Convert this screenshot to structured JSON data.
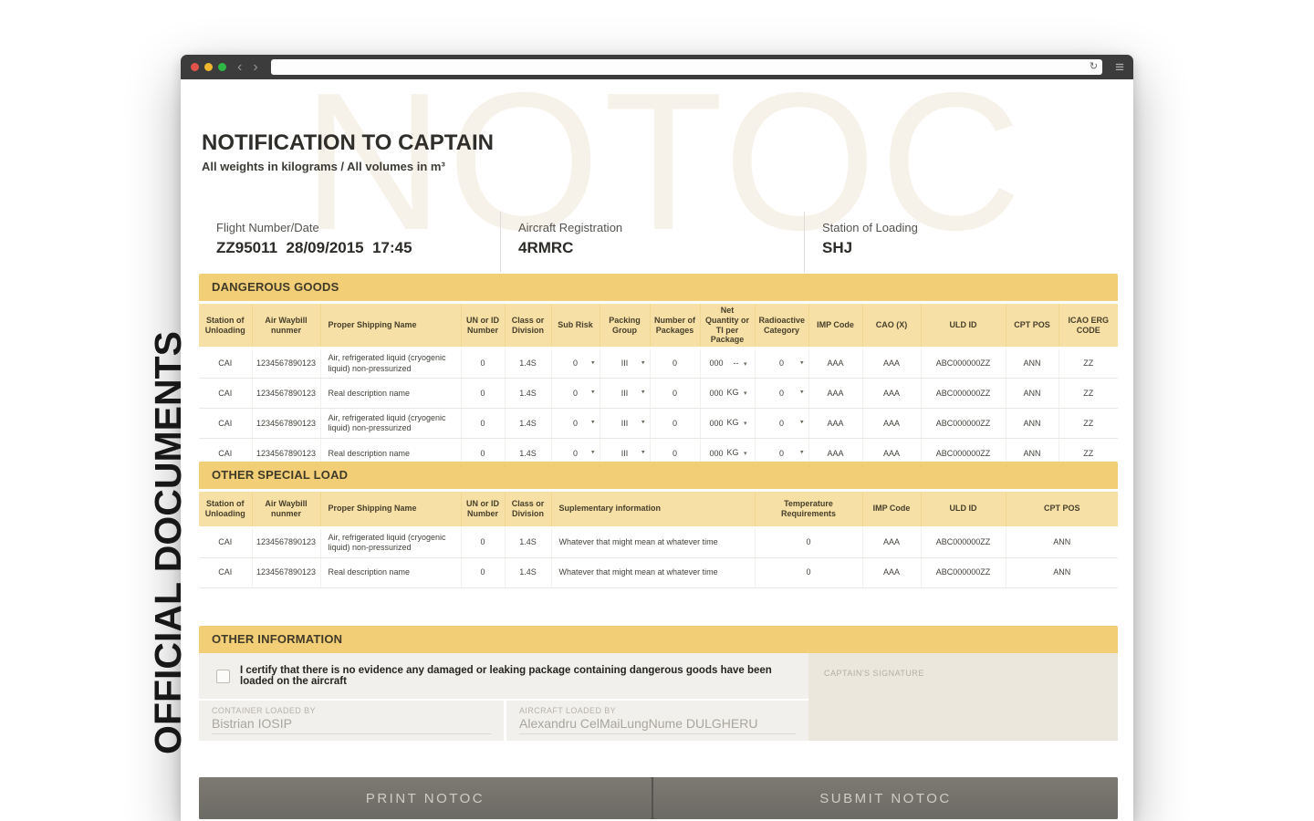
{
  "watermark": "NOTOC",
  "sidebar_label": "OFFICIAL DOCUMENTS",
  "icons": {
    "back": "‹",
    "forward": "›",
    "refresh": "↻",
    "menu": "≡",
    "dropdown_caret": "▾"
  },
  "colors": {
    "band_gold": "#f2cf77",
    "header_gold": "#f6e0a6",
    "chrome_dark": "#3d3c3c",
    "button_gray": "#74716a",
    "traffic_red": "#e2534c",
    "traffic_yellow": "#f0b62e",
    "traffic_green": "#2eb845"
  },
  "header": {
    "title": "NOTIFICATION TO CAPTAIN",
    "subtitle": "All weights in kilograms / All volumes in m³"
  },
  "flight_info": {
    "fields": [
      {
        "label": "Flight Number/Date",
        "value": "ZZ95011  28/09/2015  17:45"
      },
      {
        "label": "Aircraft Registration",
        "value": "4RMRC"
      },
      {
        "label": "Station of Loading",
        "value": "SHJ"
      }
    ]
  },
  "dangerous_goods": {
    "title": "DANGEROUS GOODS",
    "columns": [
      "Station of Unloading",
      "Air Waybill nunmer",
      "Proper Shipping Name",
      "UN or ID Number",
      "Class or Division",
      "Sub Risk",
      "Packing Group",
      "Number of Packages",
      "Net Quantity or TI per Package",
      "Radioactive Category",
      "IMP Code",
      "CAO (X)",
      "ULD ID",
      "CPT POS",
      "ICAO ERG CODE"
    ],
    "rows": [
      {
        "station": "CAI",
        "awb": "1234567890123",
        "psn": "Air, refrigerated liquid (cryogenic liquid) non-pressurized",
        "un": "0",
        "cls": "1.4S",
        "sub_risk": "0",
        "packing_group": "III",
        "packages": "0",
        "net_qty": "000",
        "net_qty_unit": "--",
        "radioactive": "0",
        "imp": "AAA",
        "cao": "AAA",
        "uld": "ABC000000ZZ",
        "cpt": "ANN",
        "erg": "ZZ"
      },
      {
        "station": "CAI",
        "awb": "1234567890123",
        "psn": "Real description name",
        "un": "0",
        "cls": "1.4S",
        "sub_risk": "0",
        "packing_group": "III",
        "packages": "0",
        "net_qty": "000",
        "net_qty_unit": "KG",
        "radioactive": "0",
        "imp": "AAA",
        "cao": "AAA",
        "uld": "ABC000000ZZ",
        "cpt": "ANN",
        "erg": "ZZ"
      },
      {
        "station": "CAI",
        "awb": "1234567890123",
        "psn": "Air, refrigerated liquid (cryogenic liquid) non-pressurized",
        "un": "0",
        "cls": "1.4S",
        "sub_risk": "0",
        "packing_group": "III",
        "packages": "0",
        "net_qty": "000",
        "net_qty_unit": "KG",
        "radioactive": "0",
        "imp": "AAA",
        "cao": "AAA",
        "uld": "ABC000000ZZ",
        "cpt": "ANN",
        "erg": "ZZ"
      },
      {
        "station": "CAI",
        "awb": "1234567890123",
        "psn": "Real description name",
        "un": "0",
        "cls": "1.4S",
        "sub_risk": "0",
        "packing_group": "III",
        "packages": "0",
        "net_qty": "000",
        "net_qty_unit": "KG",
        "radioactive": "0",
        "imp": "AAA",
        "cao": "AAA",
        "uld": "ABC000000ZZ",
        "cpt": "ANN",
        "erg": "ZZ"
      }
    ]
  },
  "other_special_load": {
    "title": "OTHER SPECIAL LOAD",
    "columns": [
      "Station of Unloading",
      "Air Waybill nunmer",
      "Proper Shipping Name",
      "UN or ID Number",
      "Class or Division",
      "Suplementary information",
      "Temperature Requirements",
      "IMP Code",
      "ULD ID",
      "CPT POS"
    ],
    "rows": [
      {
        "station": "CAI",
        "awb": "1234567890123",
        "psn": "Air, refrigerated liquid (cryogenic liquid) non-pressurized",
        "un": "0",
        "cls": "1.4S",
        "supl": "Whatever that might mean at whatever time",
        "temp": "0",
        "imp": "AAA",
        "uld": "ABC000000ZZ",
        "cpt": "ANN"
      },
      {
        "station": "CAI",
        "awb": "1234567890123",
        "psn": "Real description name",
        "un": "0",
        "cls": "1.4S",
        "supl": "Whatever that might mean at whatever time",
        "temp": "0",
        "imp": "AAA",
        "uld": "ABC000000ZZ",
        "cpt": "ANN"
      }
    ]
  },
  "other_information": {
    "title": "OTHER INFORMATION",
    "certify_text": "I certify that there is no evidence any damaged or leaking package containing dangerous goods have been loaded on the aircraft",
    "container_loaded_by": {
      "label": "CONTAINER LOADED BY",
      "value": "Bistrian IOSIP"
    },
    "aircraft_loaded_by": {
      "label": "AIRCRAFT LOADED BY",
      "value": "Alexandru CelMaiLungNume DULGHERU"
    },
    "captains_signature_label": "CAPTAIN'S SIGNATURE"
  },
  "actions": {
    "print_label": "PRINT NOTOC",
    "submit_label": "SUBMIT NOTOC"
  }
}
